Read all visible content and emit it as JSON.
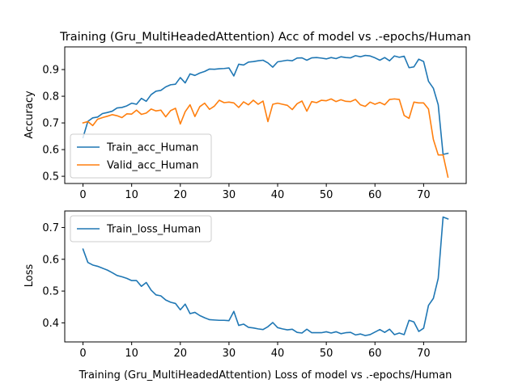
{
  "chart_data": [
    {
      "type": "line",
      "title": "Training (Gru_MultiHeadedAttention) Acc of model vs .-epochs/Human",
      "xlabel": "",
      "ylabel": "Accuracy",
      "xlim": [
        -3.75,
        78.75
      ],
      "ylim": [
        0.473,
        0.985
      ],
      "xticks": [
        0,
        10,
        20,
        30,
        40,
        50,
        60,
        70
      ],
      "yticks": [
        0.5,
        0.6,
        0.7,
        0.8,
        0.9
      ],
      "ytick_labels": [
        "0.5",
        "0.6",
        "0.7",
        "0.8",
        "0.9"
      ],
      "legend_position": "lower-left",
      "grid": false,
      "x": [
        0,
        1,
        2,
        3,
        4,
        5,
        6,
        7,
        8,
        9,
        10,
        11,
        12,
        13,
        14,
        15,
        16,
        17,
        18,
        19,
        20,
        21,
        22,
        23,
        24,
        25,
        26,
        27,
        28,
        29,
        30,
        31,
        32,
        33,
        34,
        35,
        36,
        37,
        38,
        39,
        40,
        41,
        42,
        43,
        44,
        45,
        46,
        47,
        48,
        49,
        50,
        51,
        52,
        53,
        54,
        55,
        56,
        57,
        58,
        59,
        60,
        61,
        62,
        63,
        64,
        65,
        66,
        67,
        68,
        69,
        70,
        71,
        72,
        73,
        74,
        75
      ],
      "series": [
        {
          "name": "Train_acc_Human",
          "color": "#1f77b4",
          "values": [
            0.645,
            0.706,
            0.719,
            0.722,
            0.735,
            0.739,
            0.744,
            0.756,
            0.758,
            0.764,
            0.774,
            0.77,
            0.792,
            0.781,
            0.806,
            0.819,
            0.822,
            0.835,
            0.843,
            0.845,
            0.87,
            0.85,
            0.884,
            0.878,
            0.887,
            0.893,
            0.902,
            0.901,
            0.903,
            0.904,
            0.906,
            0.876,
            0.92,
            0.917,
            0.928,
            0.93,
            0.933,
            0.935,
            0.925,
            0.909,
            0.929,
            0.932,
            0.935,
            0.933,
            0.943,
            0.944,
            0.935,
            0.944,
            0.945,
            0.943,
            0.94,
            0.945,
            0.941,
            0.948,
            0.945,
            0.944,
            0.952,
            0.948,
            0.953,
            0.951,
            0.944,
            0.935,
            0.945,
            0.933,
            0.951,
            0.946,
            0.95,
            0.907,
            0.91,
            0.939,
            0.93,
            0.856,
            0.83,
            0.768,
            0.582,
            0.586
          ]
        },
        {
          "name": "Valid_acc_Human",
          "color": "#ff7f0e",
          "values": [
            0.7,
            0.705,
            0.69,
            0.714,
            0.72,
            0.725,
            0.731,
            0.727,
            0.72,
            0.734,
            0.733,
            0.748,
            0.732,
            0.737,
            0.752,
            0.745,
            0.748,
            0.723,
            0.746,
            0.755,
            0.696,
            0.742,
            0.768,
            0.724,
            0.761,
            0.774,
            0.751,
            0.763,
            0.785,
            0.776,
            0.778,
            0.775,
            0.758,
            0.779,
            0.768,
            0.785,
            0.77,
            0.782,
            0.705,
            0.77,
            0.774,
            0.77,
            0.766,
            0.75,
            0.772,
            0.782,
            0.744,
            0.78,
            0.776,
            0.785,
            0.783,
            0.79,
            0.78,
            0.787,
            0.781,
            0.78,
            0.788,
            0.768,
            0.762,
            0.778,
            0.77,
            0.777,
            0.768,
            0.788,
            0.79,
            0.788,
            0.728,
            0.717,
            0.778,
            0.775,
            0.775,
            0.752,
            0.638,
            0.58,
            0.58,
            0.497
          ]
        }
      ]
    },
    {
      "type": "line",
      "title": "",
      "xlabel": "Training (Gru_MultiHeadedAttention) Loss of model vs .-epochs/Human",
      "ylabel": "Loss",
      "xlim": [
        -3.75,
        78.75
      ],
      "ylim": [
        0.34,
        0.752
      ],
      "xticks": [
        0,
        10,
        20,
        30,
        40,
        50,
        60,
        70
      ],
      "yticks": [
        0.4,
        0.5,
        0.6,
        0.7
      ],
      "ytick_labels": [
        "0.4",
        "0.5",
        "0.6",
        "0.7"
      ],
      "legend_position": "upper-left",
      "grid": false,
      "x": [
        0,
        1,
        2,
        3,
        4,
        5,
        6,
        7,
        8,
        9,
        10,
        11,
        12,
        13,
        14,
        15,
        16,
        17,
        18,
        19,
        20,
        21,
        22,
        23,
        24,
        25,
        26,
        27,
        28,
        29,
        30,
        31,
        32,
        33,
        34,
        35,
        36,
        37,
        38,
        39,
        40,
        41,
        42,
        43,
        44,
        45,
        46,
        47,
        48,
        49,
        50,
        51,
        52,
        53,
        54,
        55,
        56,
        57,
        58,
        59,
        60,
        61,
        62,
        63,
        64,
        65,
        66,
        67,
        68,
        69,
        70,
        71,
        72,
        73,
        74,
        75
      ],
      "series": [
        {
          "name": "Train_loss_Human",
          "color": "#1f77b4",
          "values": [
            0.632,
            0.59,
            0.582,
            0.578,
            0.572,
            0.566,
            0.558,
            0.549,
            0.545,
            0.54,
            0.533,
            0.533,
            0.515,
            0.527,
            0.503,
            0.488,
            0.485,
            0.472,
            0.465,
            0.461,
            0.441,
            0.459,
            0.429,
            0.433,
            0.423,
            0.416,
            0.41,
            0.409,
            0.408,
            0.408,
            0.407,
            0.436,
            0.392,
            0.396,
            0.386,
            0.384,
            0.381,
            0.379,
            0.388,
            0.401,
            0.385,
            0.381,
            0.378,
            0.38,
            0.37,
            0.368,
            0.38,
            0.369,
            0.369,
            0.369,
            0.372,
            0.368,
            0.372,
            0.366,
            0.369,
            0.37,
            0.362,
            0.365,
            0.36,
            0.363,
            0.371,
            0.379,
            0.37,
            0.38,
            0.363,
            0.368,
            0.363,
            0.408,
            0.403,
            0.373,
            0.383,
            0.455,
            0.477,
            0.54,
            0.733,
            0.727
          ]
        }
      ]
    }
  ]
}
